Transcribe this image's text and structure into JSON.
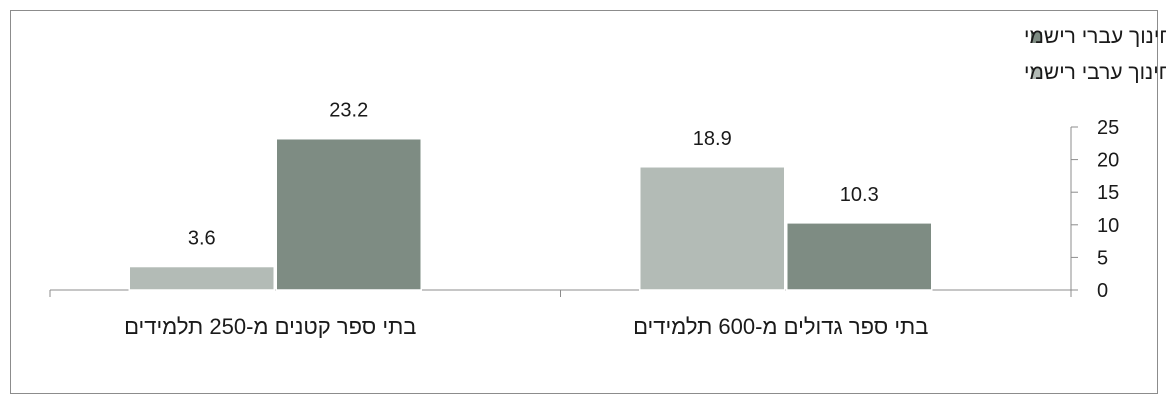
{
  "chart_data": {
    "type": "bar",
    "direction": "rtl",
    "categories": [
      "בתי ספר גדולים מ-600 תלמידים",
      "בתי ספר קטנים מ-250 תלמידים"
    ],
    "series": [
      {
        "name": "חינוך עברי רישמי",
        "color": "#7e8c83",
        "values": [
          10.3,
          23.2
        ],
        "labels": [
          "10.3",
          "23.2"
        ]
      },
      {
        "name": "חינוך ערבי רישמי",
        "color": "#b3bbb6",
        "values": [
          18.9,
          3.6
        ],
        "labels": [
          "18.9",
          "3.6"
        ]
      }
    ],
    "ylim": [
      0,
      25
    ],
    "yticks": [
      "0",
      "5",
      "10",
      "15",
      "20",
      "25"
    ],
    "y_axis_side": "right",
    "legend_position": "top-right",
    "grid": false
  }
}
